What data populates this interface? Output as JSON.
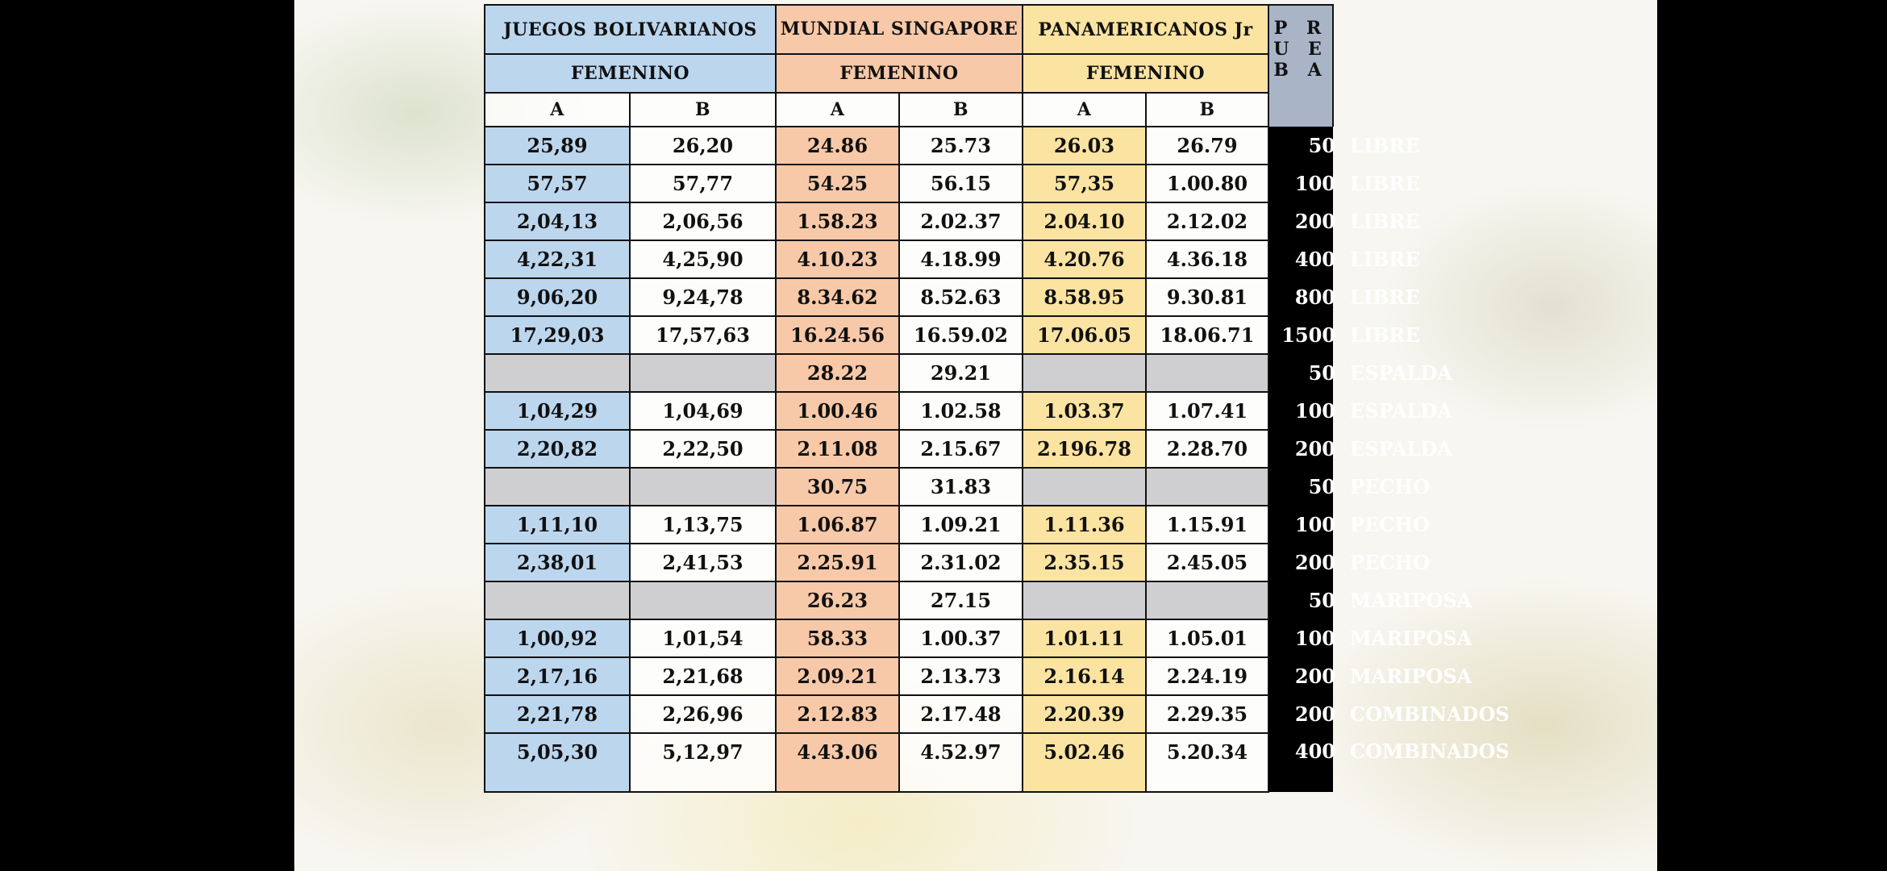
{
  "headers": {
    "bolivarianos": "JUEGOS BOLIVARIANOS",
    "mundial": "MUNDIAL SINGAPORE",
    "panamericanos": "PANAMERICANOS Jr",
    "prueba": "P R U E B A",
    "femenino": "FEMENINO",
    "col_a": "A",
    "col_b": "B"
  },
  "colors": {
    "bolivarianos": "#bcd6ee",
    "mundial": "#f8c9a8",
    "panamericanos": "#fbe3a2",
    "prueba_header": "#a9b5c7",
    "empty": "#cfcfd1"
  },
  "rows": [
    {
      "dist": "50",
      "style": "LIBRE",
      "bol_a": "25,89",
      "bol_b": "26,20",
      "mun_a": "24.86",
      "mun_b": "25.73",
      "pan_a": "26.03",
      "pan_b": "26.79"
    },
    {
      "dist": "100",
      "style": "LIBRE",
      "bol_a": "57,57",
      "bol_b": "57,77",
      "mun_a": "54.25",
      "mun_b": "56.15",
      "pan_a": "57,35",
      "pan_b": "1.00.80"
    },
    {
      "dist": "200",
      "style": "LIBRE",
      "bol_a": "2,04,13",
      "bol_b": "2,06,56",
      "mun_a": "1.58.23",
      "mun_b": "2.02.37",
      "pan_a": "2.04.10",
      "pan_b": "2.12.02"
    },
    {
      "dist": "400",
      "style": "LIBRE",
      "bol_a": "4,22,31",
      "bol_b": "4,25,90",
      "mun_a": "4.10.23",
      "mun_b": "4.18.99",
      "pan_a": "4.20.76",
      "pan_b": "4.36.18"
    },
    {
      "dist": "800",
      "style": "LIBRE",
      "bol_a": "9,06,20",
      "bol_b": "9,24,78",
      "mun_a": "8.34.62",
      "mun_b": "8.52.63",
      "pan_a": "8.58.95",
      "pan_b": "9.30.81"
    },
    {
      "dist": "1500",
      "style": "LIBRE",
      "bol_a": "17,29,03",
      "bol_b": "17,57,63",
      "mun_a": "16.24.56",
      "mun_b": "16.59.02",
      "pan_a": "17.06.05",
      "pan_b": "18.06.71"
    },
    {
      "dist": "50",
      "style": "ESPALDA",
      "bol_a": "",
      "bol_b": "",
      "mun_a": "28.22",
      "mun_b": "29.21",
      "pan_a": "",
      "pan_b": ""
    },
    {
      "dist": "100",
      "style": "ESPALDA",
      "bol_a": "1,04,29",
      "bol_b": "1,04,69",
      "mun_a": "1.00.46",
      "mun_b": "1.02.58",
      "pan_a": "1.03.37",
      "pan_b": "1.07.41"
    },
    {
      "dist": "200",
      "style": "ESPALDA",
      "bol_a": "2,20,82",
      "bol_b": "2,22,50",
      "mun_a": "2.11.08",
      "mun_b": "2.15.67",
      "pan_a": "2.196.78",
      "pan_b": "2.28.70"
    },
    {
      "dist": "50",
      "style": "PECHO",
      "bol_a": "",
      "bol_b": "",
      "mun_a": "30.75",
      "mun_b": "31.83",
      "pan_a": "",
      "pan_b": ""
    },
    {
      "dist": "100",
      "style": "PECHO",
      "bol_a": "1,11,10",
      "bol_b": "1,13,75",
      "mun_a": "1.06.87",
      "mun_b": "1.09.21",
      "pan_a": "1.11.36",
      "pan_b": "1.15.91"
    },
    {
      "dist": "200",
      "style": "PECHO",
      "bol_a": "2,38,01",
      "bol_b": "2,41,53",
      "mun_a": "2.25.91",
      "mun_b": "2.31.02",
      "pan_a": "2.35.15",
      "pan_b": "2.45.05"
    },
    {
      "dist": "50",
      "style": "MARIPOSA",
      "bol_a": "",
      "bol_b": "",
      "mun_a": "26.23",
      "mun_b": "27.15",
      "pan_a": "",
      "pan_b": ""
    },
    {
      "dist": "100",
      "style": "MARIPOSA",
      "bol_a": "1,00,92",
      "bol_b": "1,01,54",
      "mun_a": "58.33",
      "mun_b": "1.00.37",
      "pan_a": "1.01.11",
      "pan_b": "1.05.01"
    },
    {
      "dist": "200",
      "style": "MARIPOSA",
      "bol_a": "2,17,16",
      "bol_b": "2,21,68",
      "mun_a": "2.09.21",
      "mun_b": "2.13.73",
      "pan_a": "2.16.14",
      "pan_b": "2.24.19"
    },
    {
      "dist": "200",
      "style": "COMBINADOS",
      "bol_a": "2,21,78",
      "bol_b": "2,26,96",
      "mun_a": "2.12.83",
      "mun_b": "2.17.48",
      "pan_a": "2.20.39",
      "pan_b": "2.29.35"
    },
    {
      "dist": "400",
      "style": "COMBINADOS",
      "bol_a": "5,05,30",
      "bol_b": "5,12,97",
      "mun_a": "4.43.06",
      "mun_b": "4.52.97",
      "pan_a": "5.02.46",
      "pan_b": "5.20.34"
    }
  ],
  "logo_icon": "swim-federation-logo-icon"
}
